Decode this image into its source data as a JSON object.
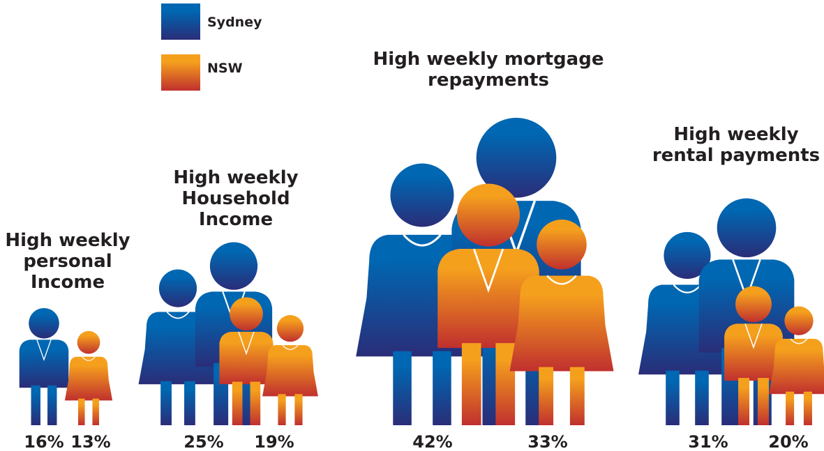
{
  "chart_data": {
    "type": "pictogram",
    "categories": [
      "High weekly personal Income",
      "High weekly Household Income",
      "High weekly mortgage repayments",
      "High weekly rental payments"
    ],
    "series": [
      {
        "name": "Sydney",
        "color": "#0067b2",
        "values": [
          16,
          25,
          42,
          31
        ],
        "value_labels": [
          "16%",
          "25%",
          "42%",
          "31%"
        ]
      },
      {
        "name": "NSW",
        "color": "#f5a01d",
        "values": [
          13,
          19,
          33,
          20
        ],
        "value_labels": [
          "13%",
          "19%",
          "33%",
          "20%"
        ]
      }
    ]
  }
}
